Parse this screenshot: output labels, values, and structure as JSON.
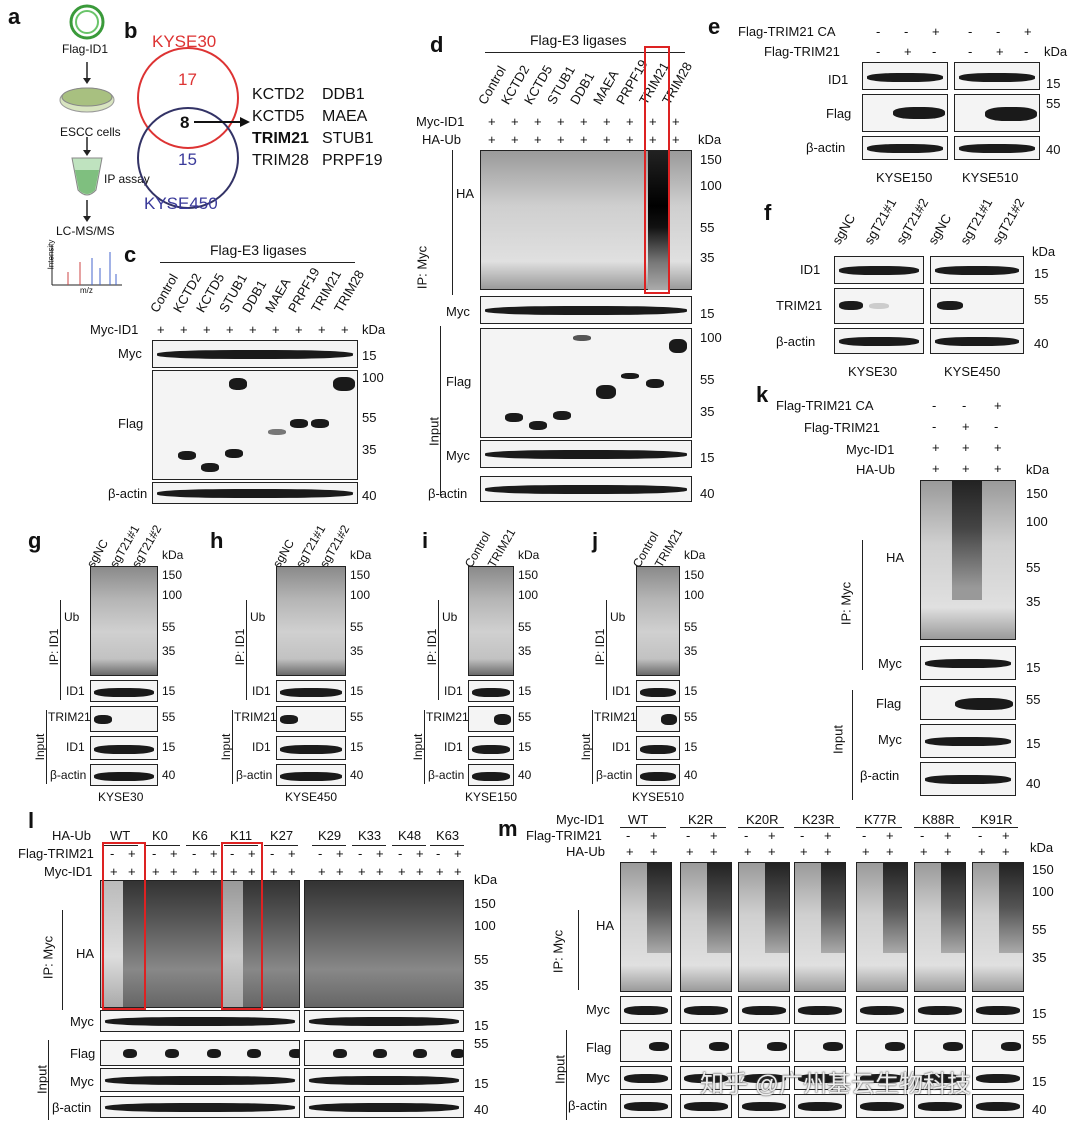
{
  "panel_a": {
    "label": "a",
    "steps": [
      "Flag-ID1",
      "ESCC cells",
      "IP assay",
      "LC-MS/MS"
    ],
    "axis_y": "Intensity",
    "axis_x": "m/z"
  },
  "panel_b": {
    "label": "b",
    "set1": "KYSE30",
    "set2": "KYSE450",
    "n1": "17",
    "n_overlap": "8",
    "n2": "15",
    "genes": [
      "KCTD2",
      "DDB1",
      "KCTD5",
      "MAEA",
      "TRIM21",
      "STUB1",
      "TRIM28",
      "PRPF19"
    ]
  },
  "panel_c": {
    "label": "c",
    "title": "Flag-E3 ligases",
    "lanes": [
      "Control",
      "KCTD2",
      "KCTD5",
      "STUB1",
      "DDB1",
      "MAEA",
      "PRPF19",
      "TRIM21",
      "TRIM28"
    ],
    "row_label": "Myc-ID1",
    "plus": "+",
    "kda": "kDa",
    "blots": [
      "Myc",
      "Flag",
      "β-actin"
    ],
    "markers": [
      "15",
      "100",
      "55",
      "35",
      "40"
    ]
  },
  "panel_d": {
    "label": "d",
    "title": "Flag-E3 ligases",
    "lanes": [
      "Control",
      "KCTD2",
      "KCTD5",
      "STUB1",
      "DDB1",
      "MAEA",
      "PRPF19",
      "TRIM21",
      "TRIM28"
    ],
    "rows": [
      "Myc-ID1",
      "HA-Ub"
    ],
    "plus": "+",
    "kda": "kDa",
    "blots": [
      "HA",
      "Myc",
      "Flag",
      "Myc",
      "β-actin"
    ],
    "ip": "IP: Myc",
    "input": "Input",
    "markers": [
      "150",
      "100",
      "55",
      "35",
      "15",
      "100",
      "55",
      "35",
      "15",
      "40"
    ]
  },
  "panel_e": {
    "label": "e",
    "rows": [
      "Flag-TRIM21 CA",
      "Flag-TRIM21"
    ],
    "signs_ca": [
      "-",
      "-",
      "+",
      "-",
      "-",
      "+"
    ],
    "signs_wt": [
      "-",
      "+",
      "-",
      "-",
      "+",
      "-"
    ],
    "kda": "kDa",
    "blots": [
      "ID1",
      "Flag",
      "β-actin"
    ],
    "markers": [
      "15",
      "55",
      "40"
    ],
    "cells": [
      "KYSE150",
      "KYSE510"
    ]
  },
  "panel_f": {
    "label": "f",
    "lanes": [
      "sgNC",
      "sgT21#1",
      "sgT21#2",
      "sgNC",
      "sgT21#1",
      "sgT21#2"
    ],
    "kda": "kDa",
    "blots": [
      "ID1",
      "TRIM21",
      "β-actin"
    ],
    "markers": [
      "15",
      "55",
      "40"
    ],
    "cells": [
      "KYSE30",
      "KYSE450"
    ]
  },
  "panel_g": {
    "label": "g",
    "lanes": [
      "sgNC",
      "sgT21#1",
      "sgT21#2"
    ],
    "kda": "kDa",
    "blots": [
      "Ub",
      "ID1",
      "TRIM21",
      "ID1",
      "β-actin"
    ],
    "ip": "IP: ID1",
    "input": "Input",
    "markers": [
      "150",
      "100",
      "55",
      "35",
      "15",
      "55",
      "15",
      "40"
    ],
    "cell": "KYSE30"
  },
  "panel_h": {
    "label": "h",
    "lanes": [
      "sgNC",
      "sgT21#1",
      "sgT21#2"
    ],
    "kda": "kDa",
    "blots": [
      "Ub",
      "ID1",
      "TRIM21",
      "ID1",
      "β-actin"
    ],
    "ip": "IP: ID1",
    "input": "Input",
    "markers": [
      "150",
      "100",
      "55",
      "35",
      "15",
      "55",
      "15",
      "40"
    ],
    "cell": "KYSE450"
  },
  "panel_i": {
    "label": "i",
    "lanes": [
      "Control",
      "TRIM21"
    ],
    "kda": "kDa",
    "blots": [
      "Ub",
      "ID1",
      "TRIM21",
      "ID1",
      "β-actin"
    ],
    "ip": "IP: ID1",
    "input": "Input",
    "markers": [
      "150",
      "100",
      "55",
      "35",
      "15",
      "55",
      "15",
      "40"
    ],
    "cell": "KYSE150"
  },
  "panel_j": {
    "label": "j",
    "lanes": [
      "Control",
      "TRIM21"
    ],
    "kda": "kDa",
    "blots": [
      "Ub",
      "ID1",
      "TRIM21",
      "ID1",
      "β-actin"
    ],
    "ip": "IP: ID1",
    "input": "Input",
    "markers": [
      "150",
      "100",
      "55",
      "35",
      "15",
      "55",
      "15",
      "40"
    ],
    "cell": "KYSE510"
  },
  "panel_k": {
    "label": "k",
    "rows": [
      "Flag-TRIM21 CA",
      "Flag-TRIM21",
      "Myc-ID1",
      "HA-Ub"
    ],
    "signs": [
      [
        "-",
        "-",
        "+"
      ],
      [
        "-",
        "+",
        "-"
      ],
      [
        "+",
        "+",
        "+"
      ],
      [
        "+",
        "+",
        "+"
      ]
    ],
    "kda": "kDa",
    "blots": [
      "HA",
      "Myc",
      "Flag",
      "Myc",
      "β-actin"
    ],
    "ip": "IP: Myc",
    "input": "Input",
    "markers": [
      "150",
      "100",
      "55",
      "35",
      "15",
      "55",
      "15",
      "40"
    ]
  },
  "panel_l": {
    "label": "l",
    "rows": [
      "HA-Ub",
      "Flag-TRIM21",
      "Myc-ID1"
    ],
    "groups": [
      "WT",
      "K0",
      "K6",
      "K11",
      "K27",
      "K29",
      "K33",
      "K48",
      "K63"
    ],
    "kda": "kDa",
    "blots": [
      "HA",
      "Myc",
      "Flag",
      "Myc",
      "β-actin"
    ],
    "ip": "IP: Myc",
    "input": "Input",
    "markers": [
      "150",
      "100",
      "55",
      "35",
      "15",
      "55",
      "15",
      "40"
    ]
  },
  "panel_m": {
    "label": "m",
    "rows": [
      "Myc-ID1",
      "Flag-TRIM21",
      "HA-Ub"
    ],
    "groups": [
      "WT",
      "K2R",
      "K20R",
      "K23R",
      "K77R",
      "K88R",
      "K91R"
    ],
    "kda": "kDa",
    "blots": [
      "HA",
      "Myc",
      "Flag",
      "Myc",
      "β-actin"
    ],
    "ip": "IP: Myc",
    "input": "Input",
    "markers": [
      "150",
      "100",
      "55",
      "35",
      "15",
      "55",
      "15",
      "40"
    ]
  },
  "watermark": "知乎 @广州基云生物科技"
}
